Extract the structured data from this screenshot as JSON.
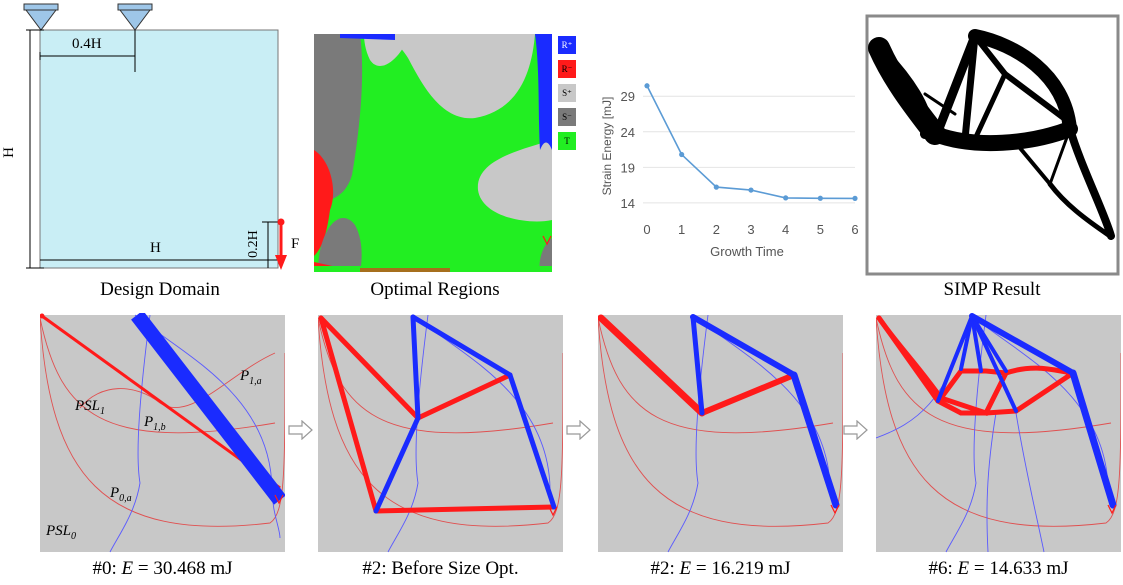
{
  "design_domain": {
    "caption": "Design Domain",
    "dim_support_spacing": "0.4H",
    "dim_height": "H",
    "dim_width": "H",
    "dim_load_height": "0.2H",
    "load_label": "F",
    "fill_color": "#c9eef5"
  },
  "optimal_regions": {
    "caption": "Optimal Regions",
    "legend": [
      {
        "label": "R⁺",
        "color": "#1a2bff"
      },
      {
        "label": "R⁻",
        "color": "#ff1a1a"
      },
      {
        "label": "S⁺",
        "color": "#c8c8c8"
      },
      {
        "label": "S⁻",
        "color": "#7a7a7a"
      },
      {
        "label": "T",
        "color": "#22ee22"
      }
    ]
  },
  "strain_chart": {
    "chart_data": {
      "type": "line",
      "xlabel": "Growth Time",
      "ylabel": "Strain Energy [mJ]",
      "x": [
        0,
        1,
        2,
        3,
        4,
        5,
        6
      ],
      "series": [
        {
          "values": [
            30.468,
            20.8,
            16.219,
            15.8,
            14.7,
            14.65,
            14.633
          ]
        }
      ],
      "yticks": [
        "29",
        "24",
        "19",
        "14"
      ],
      "xticks": [
        "0",
        "1",
        "2",
        "3",
        "4",
        "5",
        "6"
      ],
      "ylim": [
        13,
        31
      ],
      "grid": true,
      "color": "#5b9bd5"
    }
  },
  "simp": {
    "caption": "SIMP Result"
  },
  "stages": [
    {
      "caption_prefix": "#0: ",
      "caption_var": "E",
      "caption_rest": " = 30.468 mJ",
      "labels": {
        "psl1": "PSL",
        "psl1_sub": "1",
        "psl0": "PSL",
        "psl0_sub": "0",
        "p1a": "P",
        "p1a_sub": "1,a",
        "p1b": "P",
        "p1b_sub": "1,b",
        "p0a": "P",
        "p0a_sub": "0,a"
      }
    },
    {
      "caption_full": "#2: Before Size Opt."
    },
    {
      "caption_prefix": "#2: ",
      "caption_var": "E",
      "caption_rest": " = 16.219 mJ"
    },
    {
      "caption_prefix": "#6: ",
      "caption_var": "E",
      "caption_rest": " = 14.633 mJ"
    }
  ],
  "colors": {
    "panel_gray": "#c8c8c8",
    "tension_blue": "#1a2bff",
    "compression_red": "#ff1a1a"
  }
}
